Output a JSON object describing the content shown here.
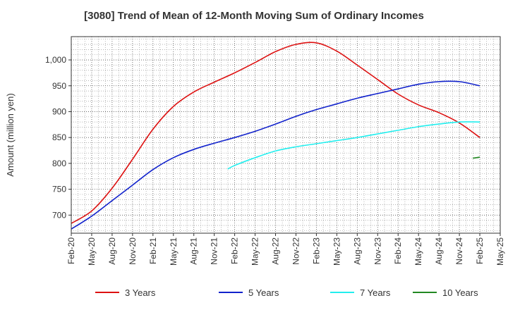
{
  "chart_data": {
    "type": "line",
    "title": "[3080]  Trend of Mean of 12-Month Moving Sum of Ordinary Incomes",
    "xlabel": "",
    "ylabel": "Amount (million yen)",
    "ylim": [
      665,
      1045
    ],
    "yticks": [
      700,
      750,
      800,
      850,
      900,
      950,
      1000
    ],
    "ytick_labels": [
      "700",
      "750",
      "800",
      "850",
      "900",
      "950",
      "1,000"
    ],
    "xtick_labels": [
      "Feb-20",
      "May-20",
      "Aug-20",
      "Nov-20",
      "Feb-21",
      "May-21",
      "Aug-21",
      "Nov-21",
      "Feb-22",
      "May-22",
      "Aug-22",
      "Nov-22",
      "Feb-23",
      "May-23",
      "Aug-23",
      "Nov-23",
      "Feb-24",
      "May-24",
      "Aug-24",
      "Nov-24",
      "Feb-25",
      "May-25"
    ],
    "grid": true,
    "legend_position": "bottom",
    "series": [
      {
        "name": "3 Years",
        "color": "#dd1111",
        "x": [
          0,
          1,
          2,
          3,
          4,
          5,
          6,
          7,
          8,
          9,
          10,
          11,
          12,
          13,
          14,
          15,
          16,
          17,
          18,
          19,
          20
        ],
        "values": [
          684,
          708,
          752,
          808,
          866,
          910,
          938,
          957,
          975,
          995,
          1016,
          1030,
          1033,
          1017,
          990,
          962,
          934,
          913,
          898,
          878,
          850
        ]
      },
      {
        "name": "5 Years",
        "color": "#1122cc",
        "x": [
          0,
          1,
          2,
          3,
          4,
          5,
          6,
          7,
          8,
          9,
          10,
          11,
          12,
          13,
          14,
          15,
          16,
          17,
          18,
          19,
          20
        ],
        "values": [
          673,
          698,
          728,
          758,
          788,
          811,
          827,
          839,
          850,
          862,
          876,
          891,
          904,
          915,
          926,
          935,
          944,
          953,
          958,
          958,
          950
        ]
      },
      {
        "name": "7 Years",
        "color": "#22eeee",
        "x": [
          7.66,
          8,
          9,
          10,
          11,
          12,
          13,
          14,
          15,
          16,
          17,
          18,
          19,
          20
        ],
        "values": [
          789,
          796,
          811,
          824,
          832,
          838,
          844,
          850,
          857,
          864,
          871,
          876,
          880,
          880
        ]
      },
      {
        "name": "10 Years",
        "color": "#228822",
        "x": [
          19.66,
          20
        ],
        "values": [
          810,
          812
        ]
      }
    ]
  }
}
